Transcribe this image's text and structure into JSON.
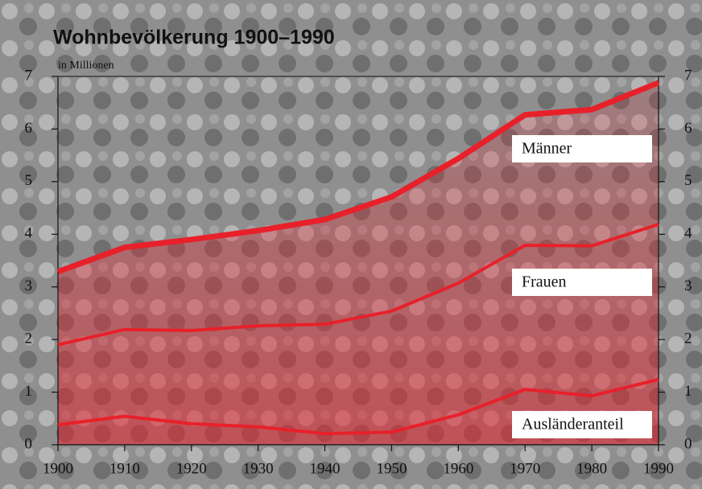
{
  "chart_data": {
    "type": "line",
    "title": "Wohnbevölkerung 1900–1990",
    "subtitle": "in Millionen",
    "x": [
      1900,
      1910,
      1920,
      1930,
      1940,
      1950,
      1960,
      1970,
      1980,
      1990
    ],
    "xlim": [
      1900,
      1990
    ],
    "xticks": [
      1900,
      1910,
      1920,
      1930,
      1940,
      1950,
      1960,
      1970,
      1980,
      1990
    ],
    "ylim": [
      0,
      7
    ],
    "yticks": [
      0,
      1,
      2,
      3,
      4,
      5,
      6,
      7
    ],
    "series": [
      {
        "name": "Männer",
        "color": "#e8202a",
        "values": [
          3.29,
          3.75,
          3.9,
          4.07,
          4.28,
          4.71,
          5.44,
          6.27,
          6.37,
          6.88
        ]
      },
      {
        "name": "Frauen",
        "color": "#e8202a",
        "values": [
          1.9,
          2.19,
          2.17,
          2.26,
          2.29,
          2.54,
          3.07,
          3.79,
          3.78,
          4.19
        ]
      },
      {
        "name": "Ausländeranteil",
        "color": "#e8202a",
        "values": [
          0.38,
          0.54,
          0.4,
          0.34,
          0.21,
          0.24,
          0.57,
          1.05,
          0.93,
          1.24
        ]
      }
    ]
  }
}
